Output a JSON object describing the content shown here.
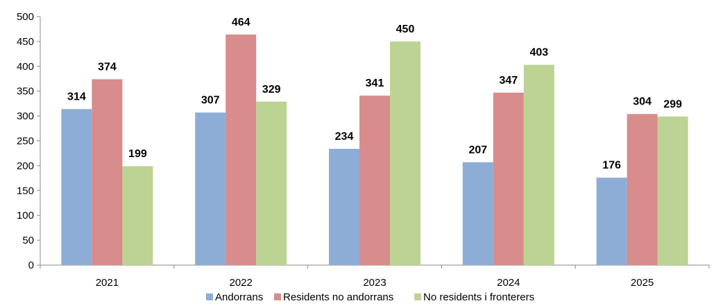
{
  "chart_data": {
    "type": "bar",
    "title": "",
    "xlabel": "",
    "ylabel": "",
    "categories": [
      "2021",
      "2022",
      "2023",
      "2024",
      "2025"
    ],
    "ylim": [
      0,
      500
    ],
    "yticks": [
      0,
      50,
      100,
      150,
      200,
      250,
      300,
      350,
      400,
      450,
      500
    ],
    "grid": false,
    "legend_position": "bottom",
    "data_labels": true,
    "series": [
      {
        "name": "Andorrans",
        "values": [
          314,
          307,
          234,
          207,
          176
        ],
        "color": "#8EADD6"
      },
      {
        "name": "Residents no andorrans",
        "values": [
          374,
          464,
          341,
          347,
          304
        ],
        "color": "#D88C8C"
      },
      {
        "name": "No residents i fronterers",
        "values": [
          199,
          329,
          450,
          403,
          299
        ],
        "color": "#BCD393"
      }
    ]
  }
}
